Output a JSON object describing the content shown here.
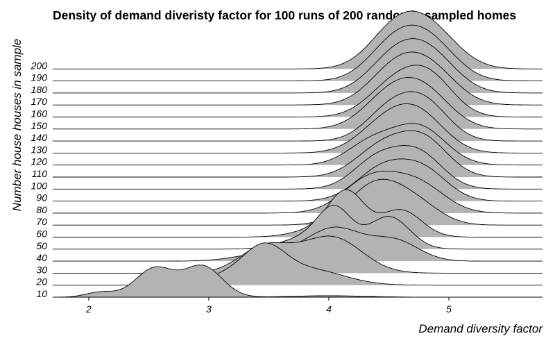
{
  "chart_data": {
    "type": "area",
    "subtype": "ridgeline-density",
    "title": "Density of demand diveristy factor for 100 runs of 200 randomly sampled homes",
    "xlabel": "Demand diversity factor",
    "ylabel": "Number house houses in sample",
    "x_ticks": [
      "2",
      "3",
      "4",
      "5"
    ],
    "xlim": [
      1.7,
      5.78
    ],
    "fill_color": "#b3b3b3",
    "line_color": "#000000",
    "series": [
      {
        "name": "10",
        "peaks": [
          [
            2.55,
            0.8,
            0.16
          ],
          [
            2.95,
            0.85,
            0.16
          ],
          [
            2.1,
            0.14,
            0.12
          ],
          [
            4.0,
            0.04,
            0.3
          ]
        ]
      },
      {
        "name": "20",
        "peaks": [
          [
            3.45,
            1.0,
            0.18
          ],
          [
            3.85,
            0.42,
            0.28
          ],
          [
            3.1,
            0.2,
            0.15
          ]
        ]
      },
      {
        "name": "30",
        "peaks": [
          [
            3.45,
            0.55,
            0.2
          ],
          [
            4.05,
            0.85,
            0.24
          ],
          [
            3.7,
            0.3,
            0.3
          ]
        ]
      },
      {
        "name": "40",
        "peaks": [
          [
            4.05,
            0.9,
            0.23
          ],
          [
            4.55,
            0.55,
            0.2
          ],
          [
            3.5,
            0.22,
            0.25
          ]
        ]
      },
      {
        "name": "50",
        "peaks": [
          [
            4.05,
            1.05,
            0.14
          ],
          [
            4.5,
            0.9,
            0.17
          ],
          [
            3.8,
            0.3,
            0.2
          ]
        ]
      },
      {
        "name": "60",
        "peaks": [
          [
            4.15,
            1.2,
            0.15
          ],
          [
            4.6,
            0.75,
            0.17
          ],
          [
            3.9,
            0.2,
            0.2
          ]
        ]
      },
      {
        "name": "70",
        "peaks": [
          [
            4.4,
            1.15,
            0.23
          ],
          [
            4.75,
            0.45,
            0.2
          ]
        ]
      },
      {
        "name": "80",
        "peaks": [
          [
            4.35,
            0.95,
            0.23
          ],
          [
            4.75,
            0.75,
            0.22
          ]
        ]
      },
      {
        "name": "90",
        "peaks": [
          [
            4.45,
            0.9,
            0.22
          ],
          [
            4.8,
            0.75,
            0.2
          ]
        ]
      },
      {
        "name": "100",
        "peaks": [
          [
            4.4,
            0.8,
            0.2
          ],
          [
            4.75,
            0.95,
            0.2
          ]
        ]
      },
      {
        "name": "110",
        "peaks": [
          [
            4.45,
            0.85,
            0.22
          ],
          [
            4.8,
            0.95,
            0.2
          ]
        ]
      },
      {
        "name": "120",
        "peaks": [
          [
            4.35,
            0.6,
            0.2
          ],
          [
            4.75,
            1.05,
            0.22
          ]
        ]
      },
      {
        "name": "130",
        "peaks": [
          [
            4.45,
            0.7,
            0.22
          ],
          [
            4.75,
            1.0,
            0.22
          ]
        ]
      },
      {
        "name": "140",
        "peaks": [
          [
            4.5,
            0.8,
            0.2
          ],
          [
            4.8,
            1.0,
            0.2
          ]
        ]
      },
      {
        "name": "150",
        "peaks": [
          [
            4.5,
            0.85,
            0.22
          ],
          [
            4.8,
            0.95,
            0.22
          ]
        ]
      },
      {
        "name": "160",
        "peaks": [
          [
            4.55,
            0.9,
            0.22
          ],
          [
            4.85,
            0.95,
            0.2
          ]
        ]
      },
      {
        "name": "170",
        "peaks": [
          [
            4.55,
            0.95,
            0.22
          ],
          [
            4.85,
            0.9,
            0.22
          ]
        ]
      },
      {
        "name": "180",
        "peaks": [
          [
            4.55,
            0.95,
            0.22
          ],
          [
            4.85,
            0.95,
            0.22
          ]
        ]
      },
      {
        "name": "190",
        "peaks": [
          [
            4.55,
            1.0,
            0.22
          ],
          [
            4.85,
            0.95,
            0.22
          ]
        ]
      },
      {
        "name": "200",
        "peaks": [
          [
            4.55,
            1.0,
            0.22
          ],
          [
            4.85,
            1.0,
            0.23
          ]
        ]
      }
    ]
  }
}
